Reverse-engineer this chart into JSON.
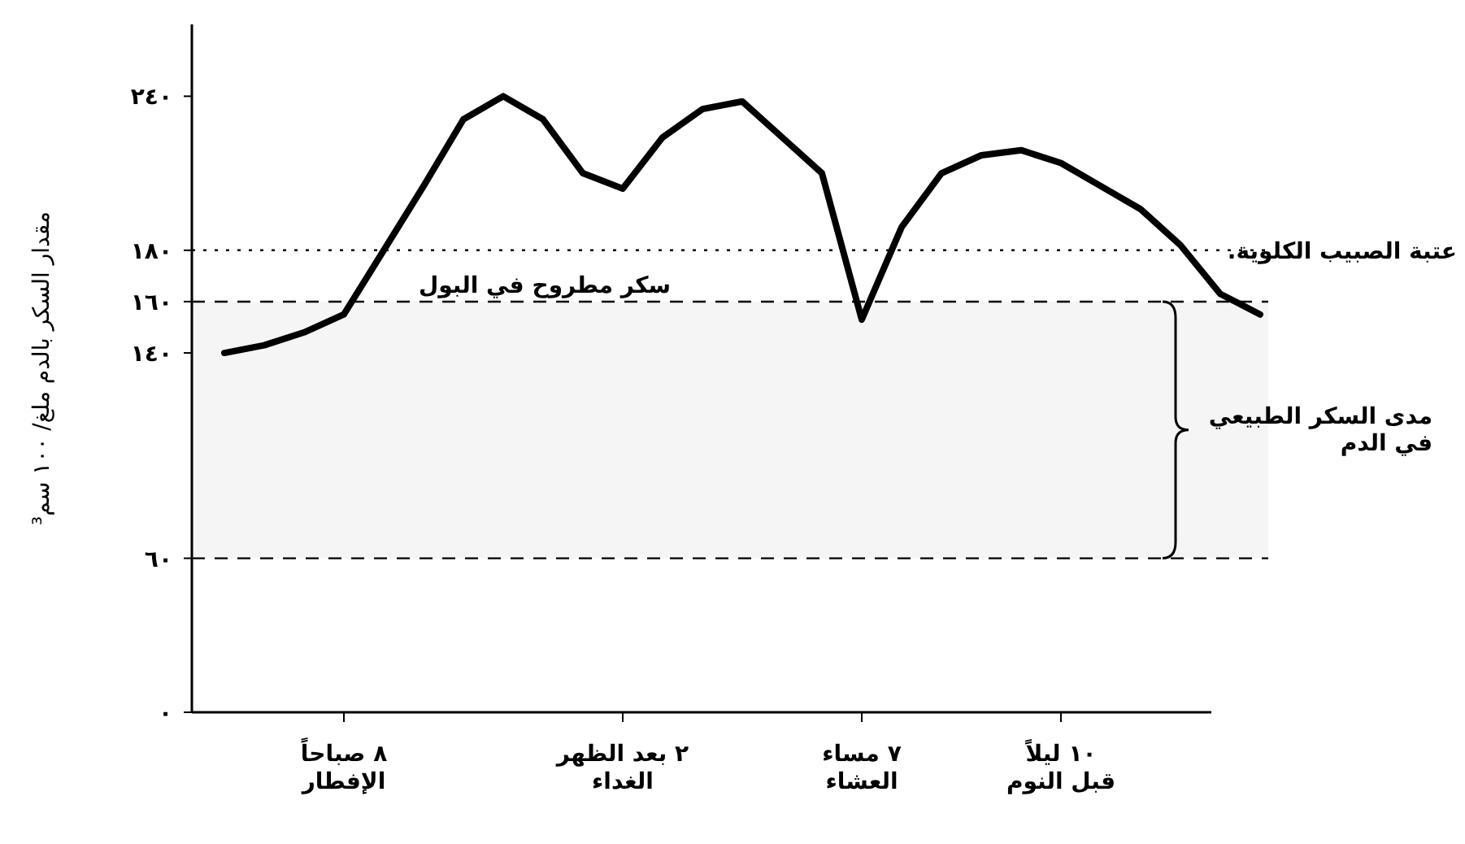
{
  "chart_data": {
    "type": "line",
    "ylabel": "مقدار السكر بالدم ملغ/ ١٠٠ سم³",
    "categories": [
      null,
      null,
      null,
      "٨ صباحاً\nالإفطار",
      null,
      null,
      null,
      null,
      null,
      null,
      "٢ بعد الظهر\nالغداء",
      null,
      null,
      null,
      null,
      null,
      "٧ مساء\nالعشاء",
      null,
      null,
      null,
      null,
      "١٠ ليلاً\nقبل النوم",
      null,
      null,
      null,
      null,
      null
    ],
    "series": [
      {
        "color": "#000000",
        "values": [
          140,
          143,
          148,
          155,
          180,
          205,
          231,
          240,
          231,
          210,
          204,
          224,
          235,
          238,
          224,
          210,
          153,
          189,
          210,
          217,
          219,
          214,
          205,
          196,
          182,
          163,
          155
        ]
      }
    ],
    "ylim": [
      0,
      268
    ],
    "yticks": [
      {
        "value": 0,
        "label": "٠"
      },
      {
        "value": 60,
        "label": "٦٠"
      },
      {
        "value": 140,
        "label": "١٤٠"
      },
      {
        "value": 160,
        "label": "١٦٠"
      },
      {
        "value": 180,
        "label": "١٨٠"
      },
      {
        "value": 240,
        "label": "٢٤٠"
      }
    ],
    "ref_lines": [
      {
        "axis": "y",
        "value": 180,
        "label": "عتبة الصبيب الكلوية.",
        "line_style": "dotted",
        "color": "#000000"
      },
      {
        "axis": "y",
        "value": 160,
        "line_style": "dashed",
        "color": "#000000"
      },
      {
        "axis": "y",
        "value": 60,
        "line_style": "dashed",
        "color": "#000000"
      }
    ],
    "bands": [
      {
        "axis": "y",
        "from": 60,
        "to": 160,
        "label": "مدى السكر الطبيعي\nفي الدم"
      }
    ],
    "annotations": [
      "سكر مطروح في البول"
    ],
    "grid": false,
    "marker": "none",
    "line_style": "solid"
  }
}
